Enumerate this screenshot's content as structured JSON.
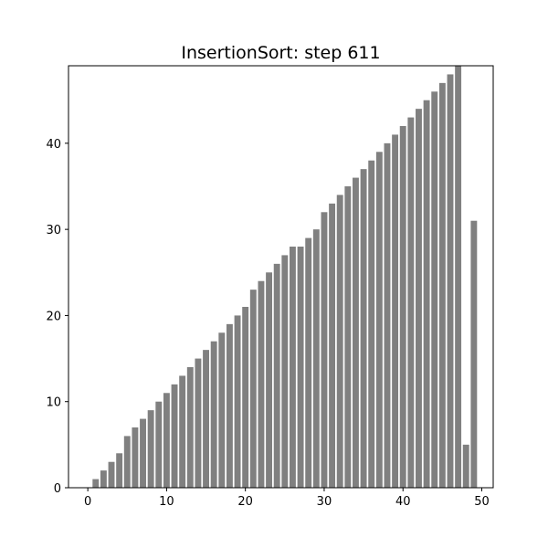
{
  "chart_data": {
    "type": "bar",
    "title": "InsertionSort: step 611",
    "xlabel": "",
    "ylabel": "",
    "bar_color": "#808080",
    "grid": false,
    "xlim": [
      -2.45,
      51.45
    ],
    "ylim": [
      0,
      49
    ],
    "x_ticks": [
      0,
      10,
      20,
      30,
      40,
      50
    ],
    "y_ticks": [
      0,
      10,
      20,
      30,
      40
    ],
    "x": [
      0,
      1,
      2,
      3,
      4,
      5,
      6,
      7,
      8,
      9,
      10,
      11,
      12,
      13,
      14,
      15,
      16,
      17,
      18,
      19,
      20,
      21,
      22,
      23,
      24,
      25,
      26,
      27,
      28,
      29,
      30,
      31,
      32,
      33,
      34,
      35,
      36,
      37,
      38,
      39,
      40,
      41,
      42,
      43,
      44,
      45,
      46,
      47,
      48,
      49
    ],
    "values": [
      0,
      1,
      2,
      3,
      4,
      6,
      7,
      8,
      9,
      10,
      11,
      12,
      13,
      14,
      15,
      16,
      17,
      18,
      19,
      20,
      21,
      23,
      24,
      25,
      26,
      27,
      28,
      28,
      29,
      30,
      32,
      33,
      34,
      35,
      36,
      37,
      38,
      39,
      40,
      41,
      42,
      43,
      44,
      45,
      46,
      47,
      48,
      49,
      5,
      31
    ]
  }
}
